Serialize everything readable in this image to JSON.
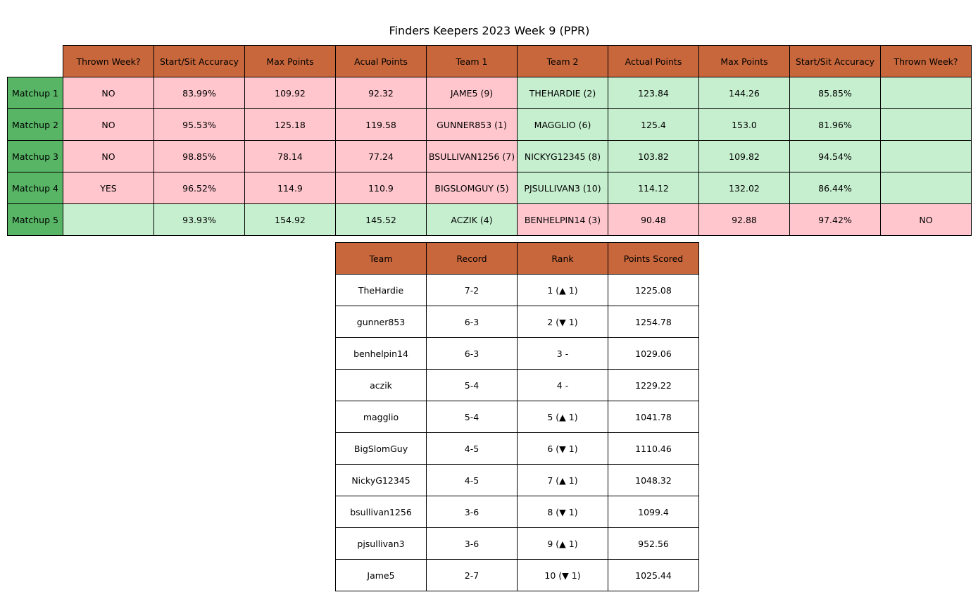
{
  "title": "Finders Keepers 2023 Week 9 (PPR)",
  "colors": {
    "header": "#c8673c",
    "row_header": "#57b565",
    "loser": "#ffc6cd",
    "winner": "#c6efcf"
  },
  "chart_data": [
    {
      "type": "table",
      "name": "matchups",
      "columns": [
        "Thrown Week?",
        "Start/Sit Accuracy",
        "Max Points",
        "Acual Points",
        "Team 1",
        "Team 2",
        "Actual Points",
        "Max Points",
        "Start/Sit Accuracy",
        "Thrown Week?"
      ],
      "rows": [
        {
          "label": "Matchup 1",
          "team1_result": "lose",
          "team2_result": "win",
          "cells": [
            "NO",
            "83.99%",
            "109.92",
            "92.32",
            "JAME5 (9)",
            "THEHARDIE (2)",
            "123.84",
            "144.26",
            "85.85%",
            ""
          ]
        },
        {
          "label": "Matchup 2",
          "team1_result": "lose",
          "team2_result": "win",
          "cells": [
            "NO",
            "95.53%",
            "125.18",
            "119.58",
            "GUNNER853 (1)",
            "MAGGLIO (6)",
            "125.4",
            "153.0",
            "81.96%",
            ""
          ]
        },
        {
          "label": "Matchup 3",
          "team1_result": "lose",
          "team2_result": "win",
          "cells": [
            "NO",
            "98.85%",
            "78.14",
            "77.24",
            "BSULLIVAN1256 (7)",
            "NICKYG12345 (8)",
            "103.82",
            "109.82",
            "94.54%",
            ""
          ]
        },
        {
          "label": "Matchup 4",
          "team1_result": "lose",
          "team2_result": "win",
          "cells": [
            "YES",
            "96.52%",
            "114.9",
            "110.9",
            "BIGSLOMGUY (5)",
            "PJSULLIVAN3 (10)",
            "114.12",
            "132.02",
            "86.44%",
            ""
          ]
        },
        {
          "label": "Matchup 5",
          "team1_result": "win",
          "team2_result": "lose",
          "cells": [
            "",
            "93.93%",
            "154.92",
            "145.52",
            "ACZIK (4)",
            "BENHELPIN14 (3)",
            "90.48",
            "92.88",
            "97.42%",
            "NO"
          ]
        }
      ]
    },
    {
      "type": "table",
      "name": "standings",
      "columns": [
        "Team",
        "Record",
        "Rank",
        "Points Scored"
      ],
      "rows": [
        [
          "TheHardie",
          "7-2",
          "1  (▲ 1)",
          "1225.08"
        ],
        [
          "gunner853",
          "6-3",
          "2  (▼ 1)",
          "1254.78"
        ],
        [
          "benhelpin14",
          "6-3",
          "3  -",
          "1029.06"
        ],
        [
          "aczik",
          "5-4",
          "4  -",
          "1229.22"
        ],
        [
          "magglio",
          "5-4",
          "5  (▲ 1)",
          "1041.78"
        ],
        [
          "BigSlomGuy",
          "4-5",
          "6  (▼ 1)",
          "1110.46"
        ],
        [
          "NickyG12345",
          "4-5",
          "7  (▲ 1)",
          "1048.32"
        ],
        [
          "bsullivan1256",
          "3-6",
          "8  (▼ 1)",
          "1099.4"
        ],
        [
          "pjsullivan3",
          "3-6",
          "9  (▲ 1)",
          "952.56"
        ],
        [
          "Jame5",
          "2-7",
          "10  (▼ 1)",
          "1025.44"
        ]
      ]
    }
  ]
}
